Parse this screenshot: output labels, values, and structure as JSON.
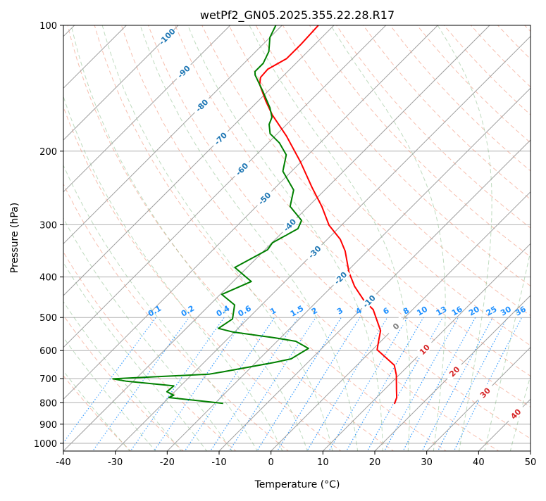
{
  "chart_data": {
    "type": "line",
    "subtype": "skew-t log-p",
    "title": "wetPf2_GN05.2025.355.22.28.R17",
    "xlabel": "Temperature (°C)",
    "ylabel": "Pressure (hPa)",
    "xlim": [
      -40,
      50
    ],
    "ylim": [
      1050,
      100
    ],
    "x_ticks": [
      -40,
      -30,
      -20,
      -10,
      0,
      10,
      20,
      30,
      40,
      50
    ],
    "y_ticks": [
      100,
      200,
      300,
      400,
      500,
      600,
      700,
      800,
      900,
      1000
    ],
    "grid": true,
    "colors": {
      "temperature": "#ff0000",
      "dewpoint": "#008000",
      "isotherm": "#b0b0b0",
      "dry_adiabat": "#f08060",
      "moist_adiabat": "#70b070",
      "mixing_ratio": "#1e90ff",
      "label_neg": "#1f77b4",
      "label_zero": "#808080",
      "label_pos": "#d62728"
    },
    "series": [
      {
        "name": "Temperature",
        "pressure": [
          100,
          111.1,
          120.1,
          127.3,
          133.2,
          138.5,
          151.5,
          163.8,
          184.0,
          212.2,
          244.5,
          271.2,
          300.7,
          325.0,
          346.7,
          389.4,
          420.9,
          454.8,
          478.7,
          537.9,
          559.2,
          597.2,
          650.4,
          686.6,
          747.6,
          777.2,
          805.0
        ],
        "temperature": [
          -73.0,
          -72.7,
          -72.7,
          -74.3,
          -74.1,
          -72.9,
          -68.6,
          -64.6,
          -57.8,
          -50.1,
          -42.9,
          -37.4,
          -32.4,
          -27.5,
          -24.3,
          -19.5,
          -15.7,
          -11.2,
          -7.6,
          -2.1,
          -1.0,
          0.9,
          7.2,
          9.5,
          12.5,
          13.9,
          14.7
        ]
      },
      {
        "name": "Dewpoint",
        "pressure": [
          100,
          106.9,
          115.5,
          123.3,
          129.0,
          131.5,
          144.0,
          157.6,
          166.0,
          172.5,
          181.6,
          191.2,
          204.1,
          223.4,
          247.7,
          271.2,
          293.0,
          306.6,
          331.3,
          344.4,
          379.5,
          410.1,
          440.3,
          466.7,
          504.1,
          531.0,
          541.4,
          559.2,
          570.1,
          592.7,
          628.1,
          640.4,
          674.4,
          683.3,
          701.0,
          710.3,
          728.8,
          752.6,
          767.4,
          777.2,
          787.1,
          802.8
        ],
        "temperature": [
          -81.2,
          -80.0,
          -77.5,
          -76.3,
          -76.3,
          -75.6,
          -70.9,
          -66.4,
          -64.2,
          -63.4,
          -61.4,
          -57.8,
          -54.2,
          -51.7,
          -46.0,
          -43.5,
          -38.6,
          -37.7,
          -39.9,
          -39.5,
          -42.4,
          -36.5,
          -39.7,
          -35.2,
          -32.9,
          -33.8,
          -30.4,
          -21.1,
          -16.4,
          -12.6,
          -13.9,
          -16.4,
          -24.5,
          -26.8,
          -44.4,
          -41.3,
          -31.3,
          -31.5,
          -29.5,
          -30.0,
          -25.4,
          -18.4
        ]
      }
    ],
    "isotherm_labels": [
      {
        "text": "-100",
        "value": -100,
        "pressure": 106.4
      },
      {
        "text": "-90",
        "value": -90,
        "pressure": 129.1
      },
      {
        "text": "-80",
        "value": -80,
        "pressure": 155.5
      },
      {
        "text": "-70",
        "value": -70,
        "pressure": 186.6
      },
      {
        "text": "-60",
        "value": -60,
        "pressure": 220.8
      },
      {
        "text": "-50",
        "value": -50,
        "pressure": 259.5
      },
      {
        "text": "-40",
        "value": -40,
        "pressure": 300.5
      },
      {
        "text": "-30",
        "value": -30,
        "pressure": 348.5
      },
      {
        "text": "-20",
        "value": -20,
        "pressure": 402.1
      },
      {
        "text": "-10",
        "value": -10,
        "pressure": 457.3
      },
      {
        "text": "0",
        "value": 0,
        "pressure": 524.8
      },
      {
        "text": "10",
        "value": 10,
        "pressure": 596.5
      },
      {
        "text": "20",
        "value": 20,
        "pressure": 673.4
      },
      {
        "text": "30",
        "value": 30,
        "pressure": 756.8
      },
      {
        "text": "40",
        "value": 40,
        "pressure": 850.6
      }
    ],
    "mixing_ratio_labels": [
      "0.1",
      "0.2",
      "0.4",
      "0.6",
      "1",
      "1.5",
      "2",
      "3",
      "4",
      "6",
      "8",
      "10",
      "13",
      "16",
      "20",
      "25",
      "30",
      "36"
    ],
    "mixing_ratio_values": [
      0.1,
      0.2,
      0.4,
      0.6,
      1,
      1.5,
      2,
      3,
      4,
      6,
      8,
      10,
      13,
      16,
      20,
      25,
      30,
      36
    ]
  }
}
